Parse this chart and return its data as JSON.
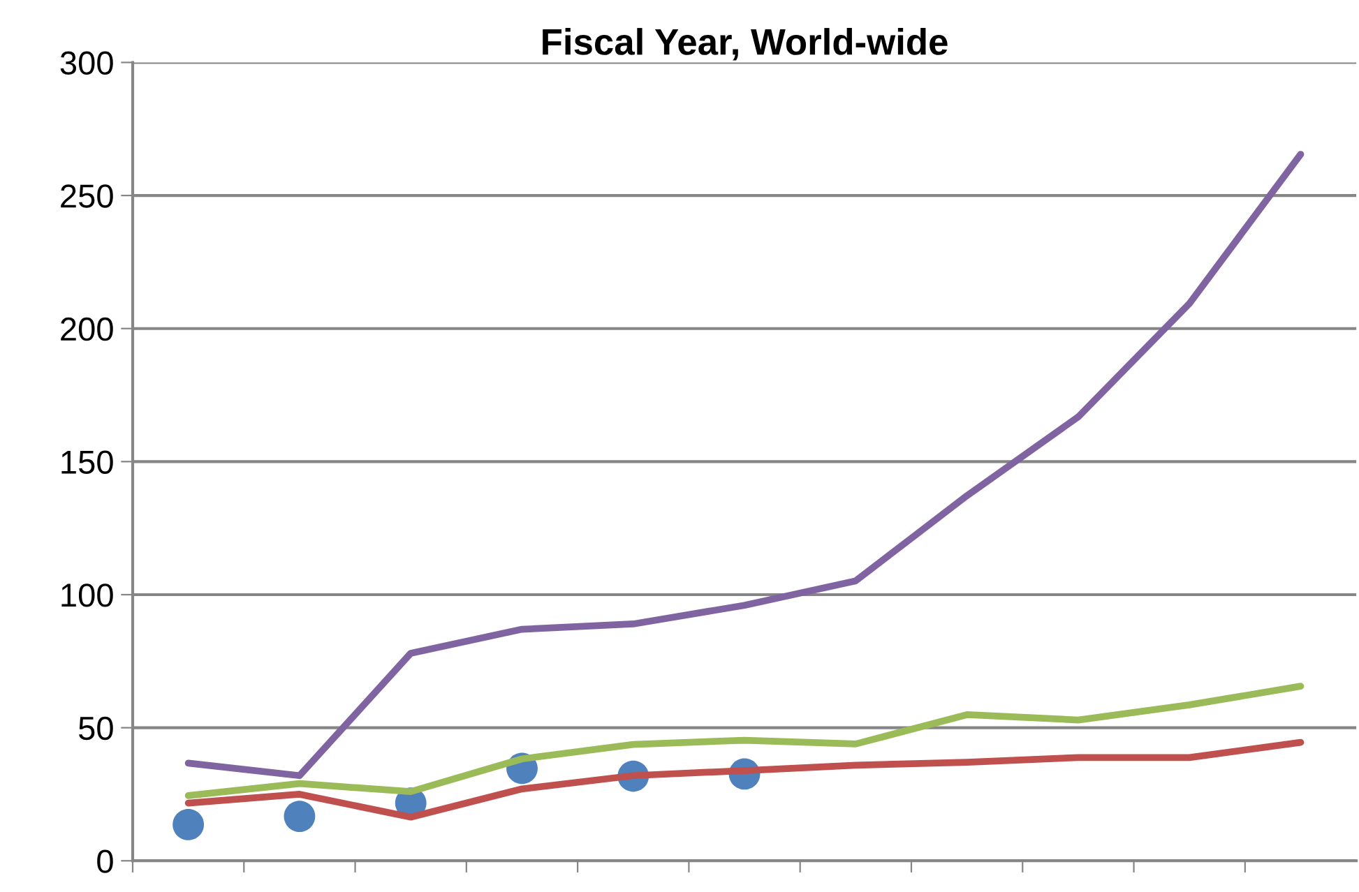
{
  "chart_data": {
    "type": "line",
    "title": "Fiscal Year, World-wide",
    "categories": [
      null,
      null,
      null,
      null,
      null,
      null,
      null,
      null,
      null,
      null,
      null
    ],
    "series": [
      {
        "type": "scatter",
        "color": "#4f81bd",
        "marker": "circle",
        "values": [
          13.6,
          16.7,
          21.7,
          34.7,
          31.8,
          32.6,
          null,
          null,
          null,
          null,
          null
        ]
      },
      {
        "color": "#c0504d",
        "marker": "none",
        "values": [
          21.7,
          25,
          16.4,
          27,
          32,
          33.9,
          35.9,
          37,
          38.8,
          38.8,
          44.5
        ]
      },
      {
        "color": "#9bbb59",
        "marker": "none",
        "values": [
          24.5,
          29,
          26,
          38.3,
          43.7,
          45.3,
          43.9,
          54.9,
          52.9,
          58.6,
          65.6
        ]
      },
      {
        "color": "#8064a2",
        "marker": "none",
        "values": [
          36.7,
          32,
          78,
          87,
          89,
          96,
          105.2,
          137.2,
          166.8,
          209.4,
          265.5
        ]
      }
    ],
    "ylim": [
      0,
      300
    ],
    "yticks": [
      0,
      50,
      100,
      150,
      200,
      250,
      300
    ],
    "grid": "y",
    "legend": false,
    "tick_labels": "y"
  }
}
